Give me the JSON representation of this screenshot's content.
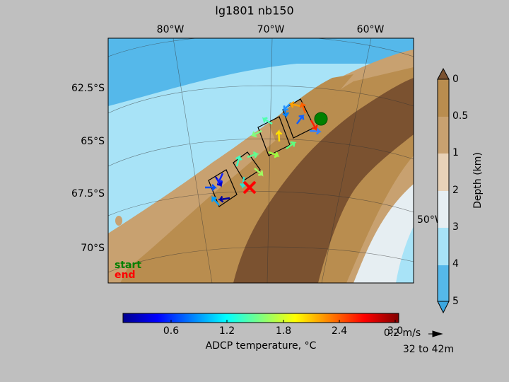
{
  "title": "lg1801 nb150",
  "longitude_labels": [
    "80°W",
    "70°W",
    "60°W"
  ],
  "latitude_labels": [
    "62.5°S",
    "65°S",
    "67.5°S",
    "70°S"
  ],
  "extra_longitude_label": "50°W",
  "legend": {
    "start": "start",
    "end": "end"
  },
  "depth_colorbar": {
    "label": "Depth (km)",
    "ticks": [
      "0",
      "0.5",
      "1",
      "2",
      "3",
      "4",
      "5"
    ]
  },
  "temperature_colorbar": {
    "label": "ADCP temperature, °C",
    "ticks": [
      "0.6",
      "1.2",
      "1.8",
      "2.4",
      "3.0"
    ]
  },
  "scale_arrow": {
    "label": "0.2 m/s",
    "depth_range": "32 to 42m"
  }
}
